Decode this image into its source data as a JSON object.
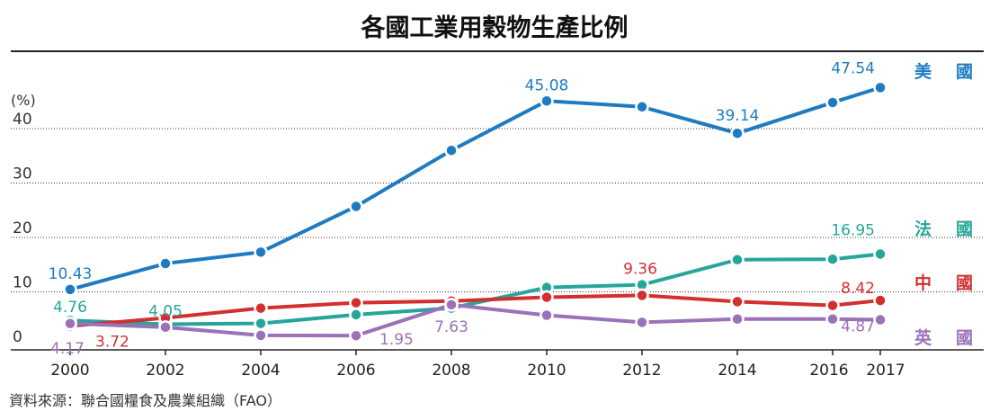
{
  "chart_data": {
    "type": "line",
    "title": "各國工業用穀物生產比例",
    "unit": "(%)",
    "source": "資料來源：聯合國糧食及農業組織（FAO）",
    "x": [
      2000,
      2002,
      2004,
      2006,
      2008,
      2010,
      2012,
      2014,
      2016,
      2017
    ],
    "xlim": [
      2000,
      2017
    ],
    "ylim": [
      0,
      50
    ],
    "yticks": [
      0,
      10,
      20,
      30,
      40
    ],
    "grid": true,
    "series": [
      {
        "name": "美 國",
        "color": "#1f7bc1",
        "values": [
          10.43,
          15.2,
          17.3,
          25.7,
          36.0,
          45.08,
          44.0,
          39.14,
          44.8,
          47.54
        ],
        "labels": {
          "0": "10.43",
          "5": "45.08",
          "7": "39.14",
          "9": "47.54"
        }
      },
      {
        "name": "法 國",
        "color": "#26a69a",
        "values": [
          4.76,
          4.05,
          4.2,
          5.8,
          7.0,
          10.8,
          11.3,
          15.9,
          16.0,
          16.95
        ],
        "labels": {
          "0": "4.76",
          "1": "4.05",
          "9": "16.95"
        }
      },
      {
        "name": "中 國",
        "color": "#d32f2f",
        "values": [
          3.72,
          5.2,
          7.0,
          8.0,
          8.3,
          9.0,
          9.36,
          8.2,
          7.5,
          8.42
        ],
        "labels": {
          "0": "3.72",
          "6": "9.36",
          "9": "8.42"
        }
      },
      {
        "name": "英 國",
        "color": "#9b72b8",
        "values": [
          4.17,
          3.5,
          2.0,
          1.95,
          7.63,
          5.7,
          4.4,
          5.0,
          5.0,
          4.87
        ],
        "labels": {
          "0": "4.17",
          "3": "1.95",
          "4": "7.63",
          "9": "4.87"
        }
      }
    ]
  }
}
